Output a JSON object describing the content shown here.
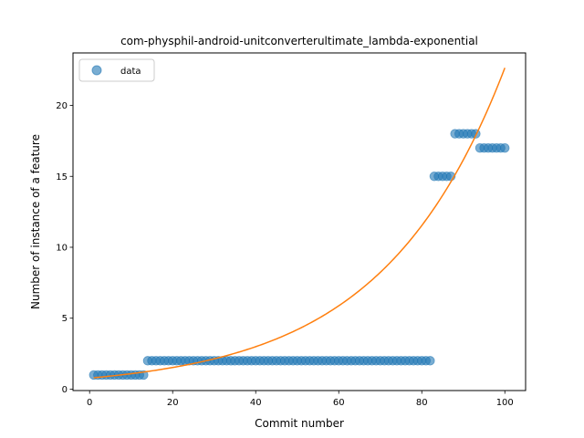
{
  "chart_data": {
    "type": "scatter",
    "title": "com-physphil-android-unitconverterultimate_lambda-exponential",
    "xlabel": "Commit number",
    "ylabel": "Number of instance of a feature",
    "xlim": [
      -4,
      105
    ],
    "ylim": [
      -0.1,
      23.7
    ],
    "xticks": [
      0,
      20,
      40,
      60,
      80,
      100
    ],
    "yticks": [
      0,
      5,
      10,
      15,
      20
    ],
    "legend": {
      "placement": "top-left",
      "entries": [
        "data"
      ]
    },
    "colors": {
      "data": "#1f77b4",
      "fit": "#ff7f0e"
    },
    "series": [
      {
        "name": "data",
        "kind": "scatter",
        "segments": [
          {
            "x_start": 1,
            "x_end": 13,
            "y": 1
          },
          {
            "x_start": 14,
            "x_end": 82,
            "y": 2
          },
          {
            "x_start": 83,
            "x_end": 87,
            "y": 15
          },
          {
            "x_start": 88,
            "x_end": 93,
            "y": 18
          },
          {
            "x_start": 94,
            "x_end": 100,
            "y": 17
          }
        ]
      },
      {
        "name": "",
        "kind": "line",
        "fit": {
          "model": "exponential",
          "a": 0.7764,
          "b": 0.03373,
          "x_start": 1,
          "x_end": 100
        }
      }
    ]
  }
}
